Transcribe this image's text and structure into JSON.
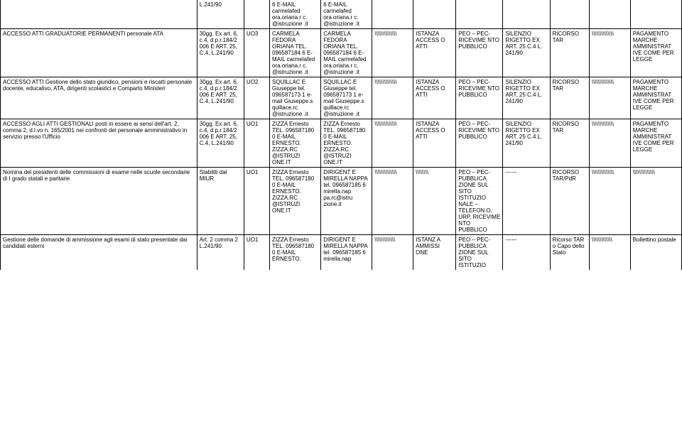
{
  "stub_row": {
    "c2": "L.241/90",
    "c4": "6 E-MAIL carmelafed ora.oriana.r c. @istruzione .it",
    "c5": "6 E-MAIL carmelafed ora.oriana.r c. @istruzione .it"
  },
  "rows": [
    {
      "c1": "ACCESSO ATTI GRADUATORIE PERMANENTI personale ATA",
      "c2": "30gg. Ex art. 6, c.4, d.p.r.184/2 006 E ART. 25, C.4, L.241/90",
      "c3": "UO3",
      "c4": "CARMELA FEDORA ORIANA TEL. 096587184 6 E-MAIL carmelafed ora.oriana.r c. @istruzione .it",
      "c5": "CARMELA FEDORA ORIANA TEL. 096587184 6 E-MAIL carmelafed ora.oriana.r c. @istruzione .it",
      "c6": "\\\\\\\\\\\\\\\\\\\\\\\\\\\\",
      "c7": "ISTANZA ACCESS O ATTI",
      "c8": "PEO – PEC- RICEVIME NTO PUBBLICO",
      "c9": "SILENZIO RIGETTO EX ART. 25 C.4 L. 241/90",
      "c10": "RICORSO TAR",
      "c11": "\\\\\\\\\\\\\\\\\\\\\\\\\\\\",
      "c12": "PAGAMENTO MARCHE AMMINISTRAT IVE COME PER LEGGE"
    },
    {
      "c1": "ACCESSO ATTI Gestione dello stato giuridico, pensioni e riscatti personale docente, educativo, ATA, dirigenti scolastici e Comparto Ministeri",
      "c2": "30gg. Ex art. 6, c.4, d.p.r.184/2 006 E ART. 25, C.4, L.241/90",
      "c3": "UO2",
      "c4": "SQUILLAC E Giuseppe tel. 096587173 1 e-mail Giuseppe.s quillace.rc @istruzione .it",
      "c5": "SQUILLAC E Giuseppe tel. 096587173 1 e-mail Giuseppe.s quillace.rc @istruzione .it",
      "c6": "\\\\\\\\\\\\\\\\\\\\\\\\\\\\",
      "c7": "ISTANZA ACCESS O ATTI",
      "c8": "PEO – PEC- RICEVIME NTO PUBBLICO",
      "c9": "SILENZIO RIGETTO EX ART. 25 C.4 L. 241/90",
      "c10": "RICORSO TAR",
      "c11": "\\\\\\\\\\\\\\\\\\\\\\\\\\\\",
      "c12": "PAGAMENTO MARCHE AMMINISTRAT IVE COME PER LEGGE"
    },
    {
      "c1": "ACCESSO AGLI ATTI GESTIONALI posti in essere ai sensi dell'art. 2, comma 2, d.l.vo n. 165/2001 nei confronti del personale amministrativo in servizio presso l'Ufficio",
      "c2": "30gg. Ex art. 6, c.4, d.p.r.184/2 006 E ART. 25, C.4, L.241/90",
      "c3": "UO1",
      "c4": "ZIZZA Ernesto TEL. 096587180 0 E-MAIL ERNESTO. ZIZZA.RC @ISTRUZI ONE.IT",
      "c5": "ZIZZA Ernesto TEL. 096587180 0 E-MAIL ERNESTO. ZIZZA.RC @ISTRUZI ONE.IT",
      "c6": "\\\\\\\\\\\\\\\\\\\\\\\\\\\\",
      "c7": "ISTANZA ACCESS O ATTI",
      "c8": "PEO – PEC- RICEVIME NTO PUBBLICO",
      "c9": "SILENZIO RIGETTO EX ART. 25 C.4 L. 241/90",
      "c10": "RICORSO TAR",
      "c11": "\\\\\\\\\\\\\\\\\\\\\\\\\\\\",
      "c12": "PAGAMENTO MARCHE AMMINISTRAT IVE COME PER LEGGE"
    },
    {
      "c1": "Nomina dei presidenti delle commissioni di esame nelle scuole secondarie di I grado statali e paritarie",
      "c2": "Stabiliti dal MIUR",
      "c3": "UO1",
      "c4": "ZIZZA Ernesto TEL. 096587180 0 E-MAIL ERNESTO. ZIZZA.RC @ISTRUZI ONE.IT",
      "c5": "DIRIGENT E MIRELLA NAPPA tel. 096587185 6 mirella.nap pa.rc@istru zione.it",
      "c6": "\\\\\\\\\\\\\\\\\\\\\\\\\\\\",
      "c7": "\\\\\\\\\\\\\\\\",
      "c8": "PEO – PEC- PUBBLICA ZIONE SUL SITO ISTITUZIO NALE – TELEFON O, URP, RICEVIME NTO PUBBLICO",
      "c9": "------",
      "c10": "RICORSO TAR/PdR",
      "c11": "\\\\\\\\\\\\\\\\\\\\\\\\\\\\",
      "c12": "\\\\\\\\\\\\\\\\\\\\\\\\\\\\"
    },
    {
      "c1": "Gestione delle domande di ammissione agli esami di stato presentate dai candidati esterni",
      "c2": "Art. 2 comma 2 L.241/90",
      "c3": "UO1",
      "c4": "ZIZZA Ernesto TEL. 096587180 0 E-MAIL ERNESTO.",
      "c5": "DIRIGENT E MIRELLA NAPPA tel. 096587185 6 mirella.nap",
      "c6": "\\\\\\\\\\\\\\\\\\\\\\\\\\",
      "c7": "ISTANZ A AMMISSI ONE",
      "c8": "PEO – PEC- PUBBLICA ZIONE SUL SITO ISTITUZIO",
      "c9": "------",
      "c10": "Ricorso TAR o Capo dello Stato",
      "c11": "\\\\\\\\\\\\\\\\\\\\\\\\\\",
      "c12": "Bollettino postale"
    }
  ]
}
